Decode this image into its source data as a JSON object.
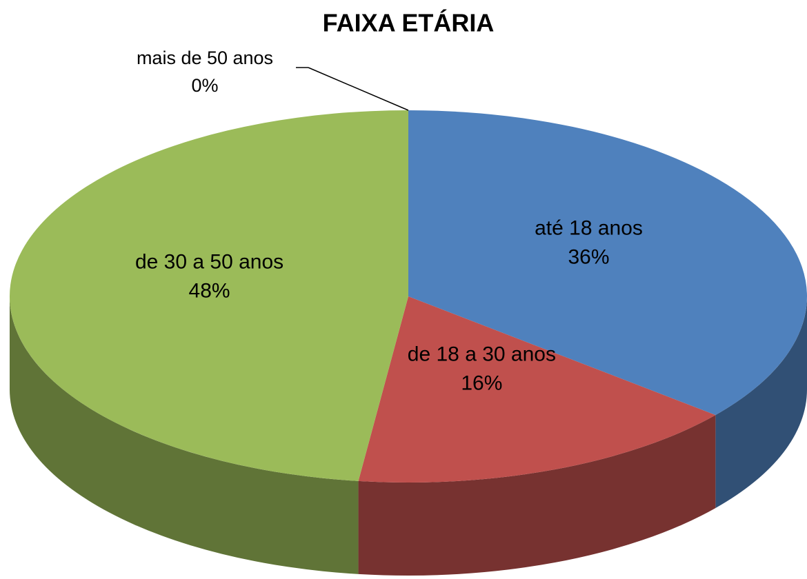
{
  "chart_data": {
    "type": "pie",
    "title": "FAIXA ETÁRIA",
    "categories": [
      "até 18 anos",
      "de 18 a 30 anos",
      "de 30 a 50 anos",
      "mais de 50 anos"
    ],
    "values": [
      36,
      16,
      48,
      0
    ],
    "value_labels": [
      "36%",
      "16%",
      "48%",
      "0%"
    ],
    "colors": [
      "#4f81bd",
      "#c0504d",
      "#9bbb59",
      "#8064a2"
    ]
  }
}
